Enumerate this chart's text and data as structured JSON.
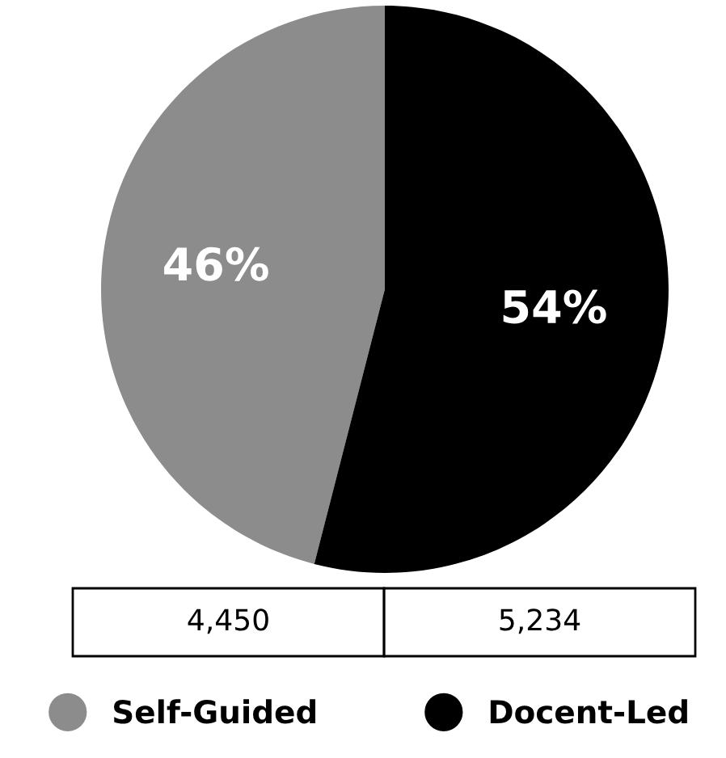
{
  "chart_data": {
    "type": "pie",
    "categories": [
      "Self-Guided",
      "Docent-Led"
    ],
    "values": [
      46,
      54
    ],
    "colors": [
      "#8c8c8c",
      "#000000"
    ],
    "value_labels": [
      "46%",
      "54%"
    ],
    "annotations": [
      "4,450",
      "5,234"
    ],
    "legend": "bottom"
  }
}
